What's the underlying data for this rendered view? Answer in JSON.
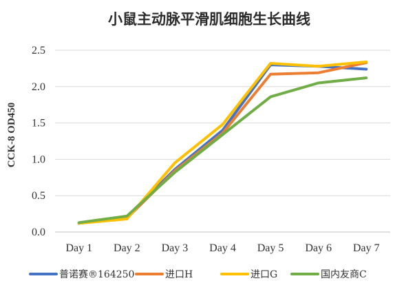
{
  "chart_data": {
    "type": "line",
    "title": "小鼠主动脉平滑肌细胞生长曲线",
    "ylabel": "CCK-8 OD450",
    "xlabel": "",
    "categories": [
      "Day 1",
      "Day 2",
      "Day 3",
      "Day 4",
      "Day 5",
      "Day 6",
      "Day 7"
    ],
    "ylim": [
      0,
      2.5
    ],
    "yticks": [
      "0.0",
      "0.5",
      "1.0",
      "1.5",
      "2.0",
      "2.5"
    ],
    "grid": true,
    "legend": "bottom",
    "series": [
      {
        "name": "普诺赛®164250",
        "color": "#4472C4",
        "values": [
          0.12,
          0.21,
          0.86,
          1.4,
          2.3,
          2.28,
          2.24
        ]
      },
      {
        "name": "进口H",
        "color": "#ED7D31",
        "values": [
          0.12,
          0.19,
          0.84,
          1.36,
          2.17,
          2.19,
          2.33
        ]
      },
      {
        "name": "进口G",
        "color": "#FFC000",
        "values": [
          0.12,
          0.18,
          0.95,
          1.48,
          2.32,
          2.28,
          2.34
        ]
      },
      {
        "name": "国内友商C",
        "color": "#70AD47",
        "values": [
          0.13,
          0.22,
          0.82,
          1.34,
          1.86,
          2.05,
          2.12
        ]
      }
    ]
  }
}
